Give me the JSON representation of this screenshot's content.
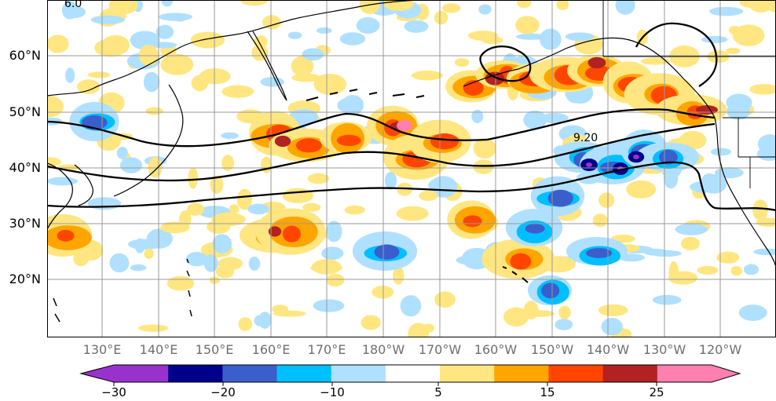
{
  "map": {
    "lat_labels": [
      "60°N",
      "50°N",
      "40°N",
      "30°N",
      "20°N"
    ],
    "lon_labels": [
      "130°E",
      "140°E",
      "150°E",
      "160°E",
      "170°E",
      "180°W",
      "170°W",
      "160°W",
      "150°W",
      "140°W",
      "130°W",
      "120°W"
    ],
    "contour_labels": [
      "6.0",
      "9.20"
    ]
  },
  "colorbar": {
    "tick_labels": [
      "−30",
      "−20",
      "−10",
      "5",
      "15",
      "25"
    ],
    "colors": [
      "#9932cc",
      "#00008b",
      "#3a5fcd",
      "#00bfff",
      "#b0e0ff",
      "#ffffff",
      "#ffe680",
      "#ffa500",
      "#ff4500",
      "#b22222",
      "#ff7fb0"
    ]
  },
  "palette": {
    "positive_weak": "#ffe680",
    "positive_mid": "#ffa500",
    "positive_strong": "#ff4500",
    "positive_very": "#b22222",
    "positive_max": "#ff7fb0",
    "negative_weak": "#b0e0ff",
    "negative_mid": "#00bfff",
    "negative_strong": "#3a5fcd",
    "negative_very": "#00008b",
    "negative_max": "#9932cc"
  }
}
